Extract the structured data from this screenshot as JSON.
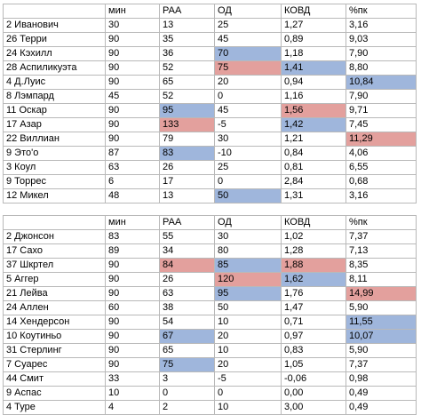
{
  "headers": [
    "",
    "мин",
    "РАА",
    "ОД",
    "КОВД",
    "%пк"
  ],
  "colors": {
    "red": "#e3a09d",
    "blue": "#9fb6dc"
  },
  "table1": [
    {
      "cells": [
        "2 Иванович",
        "30",
        "13",
        "25",
        "1,27",
        "3,16"
      ],
      "hl": {}
    },
    {
      "cells": [
        "26 Терри",
        "90",
        "35",
        "45",
        "0,89",
        "9,03"
      ],
      "hl": {}
    },
    {
      "cells": [
        "24 Кэхилл",
        "90",
        "36",
        "70",
        "1,18",
        "7,90"
      ],
      "hl": {
        "3": "blue"
      }
    },
    {
      "cells": [
        "28 Аспиликуэта",
        "90",
        "52",
        "75",
        "1,41",
        "8,80"
      ],
      "hl": {
        "3": "red",
        "4": "blue"
      }
    },
    {
      "cells": [
        "4 Д.Луис",
        "90",
        "65",
        "20",
        "0,94",
        "10,84"
      ],
      "hl": {
        "5": "blue"
      }
    },
    {
      "cells": [
        "8 Лэмпард",
        "45",
        "52",
        "0",
        "1,16",
        "7,90"
      ],
      "hl": {}
    },
    {
      "cells": [
        "11 Оскар",
        "90",
        "95",
        "45",
        "1,56",
        "9,71"
      ],
      "hl": {
        "2": "blue",
        "4": "red"
      }
    },
    {
      "cells": [
        "17 Азар",
        "90",
        "133",
        "-5",
        "1,42",
        "7,45"
      ],
      "hl": {
        "2": "red",
        "4": "blue"
      }
    },
    {
      "cells": [
        "22 Виллиан",
        "90",
        "79",
        "30",
        "1,21",
        "11,29"
      ],
      "hl": {
        "5": "red"
      }
    },
    {
      "cells": [
        "9 Это'о",
        "87",
        "83",
        "-10",
        "0,84",
        "4,06"
      ],
      "hl": {
        "2": "blue"
      }
    },
    {
      "cells": [
        "3 Коул",
        "63",
        "26",
        "25",
        "0,81",
        "6,55"
      ],
      "hl": {}
    },
    {
      "cells": [
        "9 Торрес",
        "6",
        "17",
        "0",
        "2,84",
        "0,68"
      ],
      "hl": {}
    },
    {
      "cells": [
        "12 Микел",
        "48",
        "13",
        "50",
        "1,31",
        "3,16"
      ],
      "hl": {
        "3": "blue"
      }
    }
  ],
  "table2": [
    {
      "cells": [
        "2 Джонсон",
        "83",
        "55",
        "30",
        "1,02",
        "7,37"
      ],
      "hl": {}
    },
    {
      "cells": [
        "17 Сахо",
        "89",
        "34",
        "80",
        "1,28",
        "7,13"
      ],
      "hl": {}
    },
    {
      "cells": [
        "37 Шкртел",
        "90",
        "84",
        "85",
        "1,88",
        "8,35"
      ],
      "hl": {
        "2": "red",
        "3": "blue",
        "4": "red"
      }
    },
    {
      "cells": [
        "5 Аггер",
        "90",
        "26",
        "120",
        "1,62",
        "8,11"
      ],
      "hl": {
        "3": "red",
        "4": "blue"
      }
    },
    {
      "cells": [
        "21 Лейва",
        "90",
        "63",
        "95",
        "1,76",
        "14,99"
      ],
      "hl": {
        "3": "blue",
        "5": "red"
      }
    },
    {
      "cells": [
        "24 Аллен",
        "60",
        "38",
        "50",
        "1,47",
        "5,90"
      ],
      "hl": {}
    },
    {
      "cells": [
        "14 Хендерсон",
        "90",
        "54",
        "10",
        "0,71",
        "11,55"
      ],
      "hl": {
        "5": "blue"
      }
    },
    {
      "cells": [
        "10 Коутиньо",
        "90",
        "67",
        "20",
        "0,97",
        "10,07"
      ],
      "hl": {
        "2": "blue",
        "5": "blue"
      }
    },
    {
      "cells": [
        "31 Стерлинг",
        "90",
        "65",
        "10",
        "0,83",
        "5,90"
      ],
      "hl": {}
    },
    {
      "cells": [
        "7 Суарес",
        "90",
        "75",
        "20",
        "1,05",
        "7,37"
      ],
      "hl": {
        "2": "blue"
      }
    },
    {
      "cells": [
        "44 Смит",
        "33",
        "3",
        "-5",
        "-0,06",
        "0,98"
      ],
      "hl": {}
    },
    {
      "cells": [
        "9 Аспас",
        "10",
        "0",
        "0",
        "0,00",
        "0,49"
      ],
      "hl": {}
    },
    {
      "cells": [
        "4 Туре",
        "4",
        "2",
        "10",
        "3,00",
        "0,49"
      ],
      "hl": {}
    }
  ]
}
